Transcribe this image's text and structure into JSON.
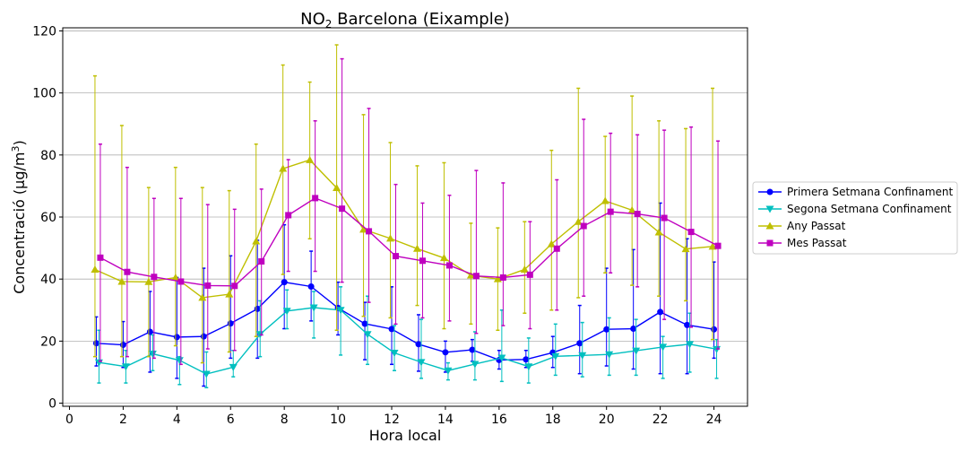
{
  "chart_data": {
    "type": "line",
    "title_main": "NO",
    "title_sub": "2",
    "title_rest": " Barcelona (Eixample)",
    "xlabel": "Hora local",
    "ylabel_main": "Concentració (µg/m",
    "ylabel_sup": "3",
    "ylabel_end": ")",
    "xlim": [
      -0.25,
      25.25
    ],
    "ylim": [
      -1,
      121
    ],
    "xticks": [
      0,
      2,
      4,
      6,
      8,
      10,
      12,
      14,
      16,
      18,
      20,
      22,
      24
    ],
    "yticks": [
      0,
      20,
      40,
      60,
      80,
      100,
      120
    ],
    "grid": "y",
    "legend_position": "center-right-outside",
    "series": [
      {
        "name": "Primera Setmana Confinament",
        "color": "#0000ff",
        "marker": "circle",
        "offset": 0,
        "values": [
          19.3,
          18.8,
          23.0,
          21.3,
          21.5,
          25.7,
          30.4,
          39.0,
          37.6,
          30.7,
          25.6,
          23.9,
          19.0,
          16.4,
          17.2,
          13.9,
          14.1,
          16.3,
          19.3,
          23.8,
          24.0,
          29.4,
          25.2,
          23.8
        ],
        "err_low": [
          12.0,
          11.5,
          10.0,
          8.0,
          5.5,
          14.5,
          14.5,
          24.0,
          26.5,
          22.0,
          14.0,
          12.5,
          10.3,
          10.0,
          13.5,
          11.0,
          11.5,
          11.5,
          9.5,
          12.0,
          11.0,
          9.5,
          9.5,
          14.5
        ],
        "err_high": [
          27.8,
          26.3,
          36.0,
          40.5,
          43.5,
          47.5,
          52.5,
          57.5,
          49.0,
          39.0,
          32.5,
          37.5,
          28.5,
          20.0,
          20.5,
          17.0,
          17.0,
          21.5,
          31.5,
          43.5,
          49.5,
          64.5,
          53.0,
          45.5
        ]
      },
      {
        "name": "Segona Setmana Confinament",
        "color": "#00bfbf",
        "marker": "triangle-down",
        "offset": 0.1,
        "values": [
          13.1,
          11.8,
          15.9,
          13.8,
          9.4,
          11.6,
          22.2,
          29.7,
          30.8,
          30.0,
          22.2,
          16.2,
          13.2,
          10.5,
          12.6,
          14.6,
          11.8,
          15.1,
          15.4,
          15.7,
          16.9,
          18.1,
          19.0,
          17.4
        ],
        "err_low": [
          6.5,
          6.5,
          10.5,
          6.0,
          5.0,
          8.5,
          15.0,
          24.0,
          21.0,
          15.5,
          12.5,
          10.5,
          8.0,
          7.5,
          7.5,
          7.0,
          6.5,
          9.0,
          8.5,
          9.0,
          9.0,
          8.0,
          10.0,
          8.0
        ],
        "err_high": [
          23.5,
          17.0,
          22.0,
          15.0,
          16.5,
          17.0,
          33.0,
          36.5,
          36.0,
          37.5,
          34.5,
          25.0,
          27.0,
          13.0,
          23.0,
          30.0,
          21.0,
          25.5,
          26.0,
          27.5,
          27.0,
          21.5,
          29.0,
          20.5
        ]
      },
      {
        "name": "Any Passat",
        "color": "#bfbf00",
        "marker": "triangle-up",
        "offset": -0.05,
        "values": [
          43.1,
          39.2,
          39.1,
          40.5,
          34.0,
          35.1,
          52.2,
          75.6,
          78.4,
          69.4,
          56.0,
          53.1,
          49.8,
          46.8,
          41.2,
          40.0,
          43.1,
          51.3,
          58.5,
          65.2,
          62.2,
          55.1,
          49.7,
          50.5
        ],
        "err_low": [
          15.0,
          15.0,
          15.0,
          18.5,
          13.0,
          16.5,
          21.5,
          41.5,
          53.0,
          23.5,
          28.0,
          27.5,
          31.5,
          24.0,
          25.5,
          23.5,
          29.0,
          30.0,
          34.0,
          42.0,
          38.0,
          34.5,
          33.0,
          20.5
        ],
        "err_high": [
          105.5,
          89.5,
          69.5,
          76.0,
          69.5,
          68.5,
          83.5,
          109.0,
          103.5,
          115.5,
          93.0,
          84.0,
          76.5,
          77.5,
          58.0,
          56.5,
          58.5,
          81.5,
          101.5,
          86.0,
          99.0,
          91.0,
          88.5,
          101.5
        ]
      },
      {
        "name": "Mes Passat",
        "color": "#bf00bf",
        "marker": "square",
        "offset": 0.15,
        "values": [
          46.9,
          42.3,
          40.7,
          39.2,
          37.9,
          37.8,
          45.7,
          60.6,
          66.1,
          62.7,
          55.4,
          47.4,
          45.9,
          44.4,
          41.0,
          40.5,
          41.4,
          49.8,
          57.1,
          61.7,
          61.0,
          59.7,
          55.2,
          50.7
        ],
        "err_low": [
          13.5,
          15.0,
          14.5,
          12.5,
          17.5,
          17.0,
          22.0,
          42.5,
          42.5,
          39.0,
          32.5,
          25.5,
          27.5,
          26.5,
          22.5,
          25.0,
          24.0,
          30.0,
          34.5,
          42.0,
          37.5,
          27.0,
          24.5,
          17.5
        ],
        "err_high": [
          83.5,
          76.0,
          66.0,
          66.0,
          64.0,
          62.5,
          69.0,
          78.5,
          91.0,
          111.0,
          95.0,
          70.5,
          64.5,
          67.0,
          75.0,
          71.0,
          58.5,
          72.0,
          91.5,
          87.0,
          86.5,
          88.0,
          89.0,
          84.5
        ]
      }
    ]
  }
}
